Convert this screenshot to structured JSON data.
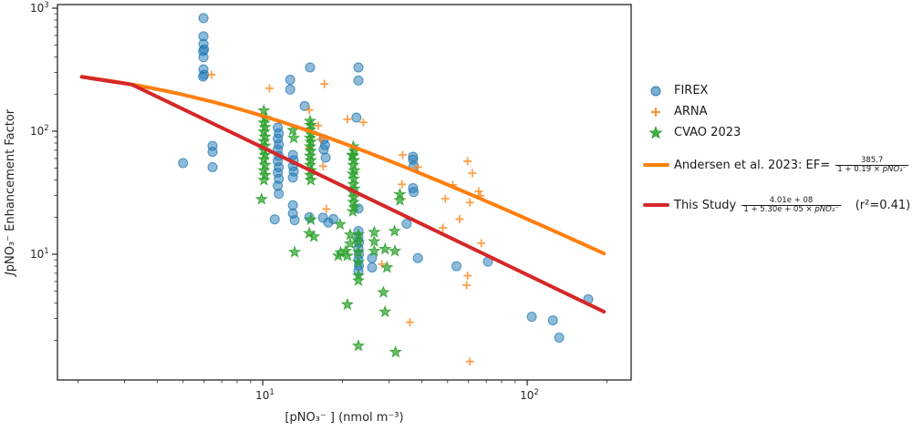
{
  "chart_data": {
    "type": "scatter",
    "title": "",
    "xlabel": "[pNO₃⁻ ] (nmol m⁻³)",
    "ylabel_italic": "J",
    "ylabel_var": "pNO₃⁻",
    "ylabel_rest": "  Enhancement Factor",
    "x_scale": "log",
    "y_scale": "log",
    "xlim": [
      1.675,
      247
    ],
    "ylim": [
      0.95,
      1070
    ],
    "x_major_ticks": [
      {
        "v": 10,
        "base": "10",
        "exp": "1"
      },
      {
        "v": 100,
        "base": "10",
        "exp": "2"
      }
    ],
    "y_major_ticks": [
      {
        "v": 10,
        "base": "10",
        "exp": "1"
      },
      {
        "v": 100,
        "base": "10",
        "exp": "2"
      },
      {
        "v": 1000,
        "base": "10",
        "exp": "3"
      }
    ],
    "grid": false,
    "legend_position": "right-outside",
    "colors": {
      "firex": "#1f77b4",
      "arna": "#ff7f0e",
      "cvao": "#2ca02c",
      "andersen_line": "#ff7f0e",
      "study_line": "#d62728",
      "axis": "#262626"
    },
    "series": [
      {
        "name": "FIREX",
        "marker": "circle",
        "color": "#1f77b4",
        "points": [
          [
            5.97,
            830
          ],
          [
            5.97,
            590
          ],
          [
            5.97,
            512
          ],
          [
            6.0,
            462
          ],
          [
            5.95,
            448
          ],
          [
            5.97,
            400
          ],
          [
            5.97,
            318
          ],
          [
            6.0,
            287
          ],
          [
            5.95,
            278
          ],
          [
            5.0,
            55
          ],
          [
            6.46,
            76
          ],
          [
            6.46,
            68
          ],
          [
            6.46,
            51
          ],
          [
            12.7,
            262
          ],
          [
            12.7,
            218
          ],
          [
            15.1,
            330
          ],
          [
            23,
            330
          ],
          [
            23,
            258
          ],
          [
            14.4,
            160
          ],
          [
            22.6,
            129
          ],
          [
            11.4,
            107
          ],
          [
            11.5,
            96
          ],
          [
            11.4,
            87
          ],
          [
            11.5,
            78
          ],
          [
            11.4,
            71
          ],
          [
            11.5,
            63
          ],
          [
            11.4,
            57
          ],
          [
            11.5,
            51
          ],
          [
            11.4,
            46
          ],
          [
            11.5,
            41
          ],
          [
            11.4,
            36
          ],
          [
            11.5,
            31
          ],
          [
            11.1,
            19.2
          ],
          [
            13.0,
            64
          ],
          [
            13.1,
            58
          ],
          [
            13.0,
            52
          ],
          [
            13.1,
            47
          ],
          [
            13.0,
            42
          ],
          [
            13.0,
            25
          ],
          [
            13.0,
            21.4
          ],
          [
            13.2,
            18.9
          ],
          [
            17.0,
            86
          ],
          [
            17.2,
            77
          ],
          [
            17.0,
            71
          ],
          [
            17.3,
            61
          ],
          [
            15.0,
            20
          ],
          [
            16.9,
            19.8
          ],
          [
            18.5,
            19.3
          ],
          [
            17.7,
            18.1
          ],
          [
            23,
            15.4
          ],
          [
            23,
            13.8
          ],
          [
            23.1,
            12.4
          ],
          [
            23,
            11.2
          ],
          [
            23.1,
            10.0
          ],
          [
            23,
            9.0
          ],
          [
            23.1,
            8.1
          ],
          [
            23,
            7.3
          ],
          [
            25.9,
            9.3
          ],
          [
            25.9,
            7.8
          ],
          [
            23,
            23.5
          ],
          [
            37,
            62
          ],
          [
            37,
            58.6
          ],
          [
            37.2,
            52
          ],
          [
            37,
            34.4
          ],
          [
            37.2,
            32
          ],
          [
            35,
            17.7
          ],
          [
            38.6,
            9.3
          ],
          [
            54,
            8.0
          ],
          [
            71,
            8.7
          ],
          [
            104,
            3.1
          ],
          [
            125,
            2.9
          ],
          [
            132,
            2.1
          ],
          [
            170,
            4.3
          ]
        ]
      },
      {
        "name": "ARNA",
        "marker": "plus",
        "color": "#ff7f0e",
        "points": [
          [
            6.4,
            288
          ],
          [
            10.6,
            223
          ],
          [
            17.1,
            242
          ],
          [
            15,
            149
          ],
          [
            16.2,
            111
          ],
          [
            16.6,
            86
          ],
          [
            15,
            73
          ],
          [
            16.9,
            52
          ],
          [
            17.4,
            23.3
          ],
          [
            20.9,
            125
          ],
          [
            24,
            118
          ],
          [
            28.2,
            8.3
          ],
          [
            33.8,
            64
          ],
          [
            38.6,
            51
          ],
          [
            33.6,
            37
          ],
          [
            36,
            2.8
          ],
          [
            48,
            16.4
          ],
          [
            49,
            28.3
          ],
          [
            52.3,
            36.6
          ],
          [
            55.5,
            19.3
          ],
          [
            59.5,
            57
          ],
          [
            62,
            45.6
          ],
          [
            65.5,
            32.4
          ],
          [
            66.5,
            29.8
          ],
          [
            60.7,
            26.3
          ],
          [
            59.5,
            6.7
          ],
          [
            59,
            5.6
          ],
          [
            67,
            12.3
          ],
          [
            60.7,
            1.34
          ]
        ]
      },
      {
        "name": "CVAO 2023",
        "marker": "star",
        "color": "#2ca02c",
        "points": [
          [
            10.1,
            147
          ],
          [
            10.2,
            128
          ],
          [
            10.1,
            117
          ],
          [
            10.2,
            108
          ],
          [
            10.1,
            99
          ],
          [
            10.2,
            90
          ],
          [
            10.1,
            83
          ],
          [
            10.2,
            76
          ],
          [
            10.1,
            70
          ],
          [
            10.2,
            64
          ],
          [
            10.1,
            59
          ],
          [
            10.2,
            53
          ],
          [
            10.1,
            48
          ],
          [
            10.2,
            44
          ],
          [
            10.1,
            40
          ],
          [
            9.9,
            28
          ],
          [
            15.1,
            121
          ],
          [
            15.2,
            112
          ],
          [
            15.1,
            103
          ],
          [
            15.2,
            96
          ],
          [
            15.1,
            88
          ],
          [
            15.2,
            82
          ],
          [
            15.1,
            75
          ],
          [
            15.2,
            69
          ],
          [
            15.1,
            63
          ],
          [
            15.2,
            58
          ],
          [
            15.1,
            53
          ],
          [
            15.2,
            48
          ],
          [
            15.1,
            44
          ],
          [
            15.2,
            40
          ],
          [
            13.0,
            102
          ],
          [
            13.1,
            88
          ],
          [
            21.8,
            64
          ],
          [
            22,
            75
          ],
          [
            22.2,
            69
          ],
          [
            21.9,
            63
          ],
          [
            22.1,
            58
          ],
          [
            22,
            53
          ],
          [
            22.2,
            48
          ],
          [
            21.9,
            45
          ],
          [
            22.1,
            41
          ],
          [
            22,
            37
          ],
          [
            22.2,
            34
          ],
          [
            21.9,
            32
          ],
          [
            22.1,
            29
          ],
          [
            22,
            26.5
          ],
          [
            22.2,
            24
          ],
          [
            21.9,
            22.3
          ],
          [
            21.4,
            14.4
          ],
          [
            21.4,
            12.2
          ],
          [
            19.7,
            10.3
          ],
          [
            20.6,
            10.6
          ],
          [
            26.4,
            15.1
          ],
          [
            26.4,
            12.7
          ],
          [
            26.4,
            10.6
          ],
          [
            31.5,
            15.4
          ],
          [
            29,
            11
          ],
          [
            31.6,
            10.6
          ],
          [
            29.5,
            7.8
          ],
          [
            28.6,
            4.9
          ],
          [
            20.9,
            3.9
          ],
          [
            29,
            3.4
          ],
          [
            23,
            1.8
          ],
          [
            31.8,
            1.6
          ],
          [
            15.2,
            19.1
          ],
          [
            19.6,
            17.5
          ],
          [
            15,
            14.8
          ],
          [
            15.6,
            13.9
          ],
          [
            13.2,
            10.4
          ],
          [
            19.3,
            9.7
          ],
          [
            20.9,
            9.7
          ],
          [
            23,
            6.1
          ],
          [
            33,
            30.7
          ],
          [
            33,
            27.4
          ],
          [
            23,
            14.4
          ],
          [
            23,
            12.6
          ],
          [
            23,
            10.4
          ],
          [
            23,
            8.6
          ],
          [
            23,
            6.7
          ]
        ]
      }
    ],
    "fit_lines": [
      {
        "name": "Andersen et al. 2023",
        "color": "#ff7f0e",
        "type": "formula",
        "a": 385.7,
        "b": 0.19,
        "x_range": [
          2.07,
          195
        ]
      },
      {
        "name": "This Study",
        "color": "#d62728",
        "type": "polyline_loglog",
        "points": [
          [
            2.07,
            276
          ],
          [
            3.21,
            239
          ],
          [
            195,
            3.41
          ]
        ]
      }
    ]
  },
  "legend": {
    "firex_label": "FIREX",
    "arna_label": "ARNA",
    "cvao_label": "CVAO 2023",
    "andersen_prefix": "Andersen et al. 2023: EF= ",
    "andersen_num": "385.7",
    "andersen_den_pre": "1 + 0.19 × ",
    "andersen_den_var": "pNO₃⁻",
    "study_prefix": "This Study ",
    "study_num": "4.01e + 08",
    "study_den_pre": "1 + 5.30e + 05 × ",
    "study_den_var": "pNO₃⁻",
    "study_suffix": "(r²=0.41)"
  }
}
